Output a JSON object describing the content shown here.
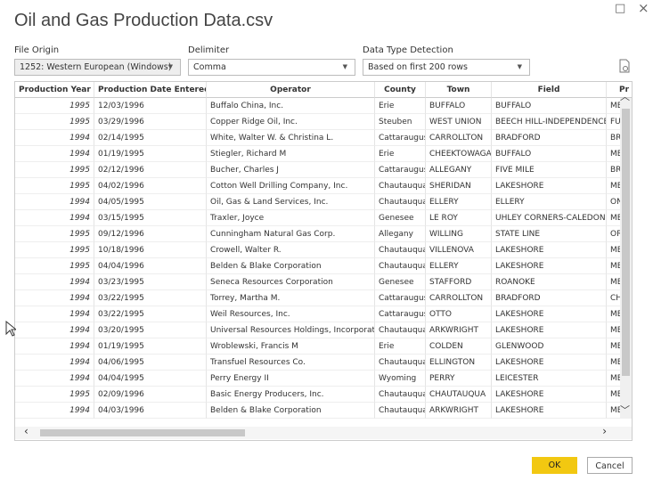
{
  "dialog": {
    "title": "Oil and Gas Production Data.csv",
    "file_origin": {
      "label": "File Origin",
      "value": "1252: Western European (Windows)"
    },
    "delimiter": {
      "label": "Delimiter",
      "value": "Comma"
    },
    "detection": {
      "label": "Data Type Detection",
      "value": "Based on first 200 rows"
    },
    "ok": "OK",
    "cancel": "Cancel"
  },
  "table": {
    "columns": [
      "Production Year",
      "Production Date Entered",
      "Operator",
      "County",
      "Town",
      "Field",
      "Pr"
    ],
    "rows": [
      [
        "1995",
        "12/03/1996",
        "Buffalo China, Inc.",
        "Erie",
        "BUFFALO",
        "BUFFALO",
        "ME"
      ],
      [
        "1995",
        "03/29/1996",
        "Copper Ridge Oil, Inc.",
        "Steuben",
        "WEST UNION",
        "BEECH HILL-INDEPENDENCE",
        "FU"
      ],
      [
        "1994",
        "02/14/1995",
        "White, Walter W. & Christina L.",
        "Cattaraugus",
        "CARROLLTON",
        "BRADFORD",
        "BR"
      ],
      [
        "1994",
        "01/19/1995",
        "Stiegler, Richard M",
        "Erie",
        "CHEEKTOWAGA",
        "BUFFALO",
        "ME"
      ],
      [
        "1995",
        "02/12/1996",
        "Bucher, Charles J",
        "Cattaraugus",
        "ALLEGANY",
        "FIVE MILE",
        "BR"
      ],
      [
        "1995",
        "04/02/1996",
        "Cotton Well Drilling Company, Inc.",
        "Chautauqua",
        "SHERIDAN",
        "LAKESHORE",
        "ME"
      ],
      [
        "1994",
        "04/05/1995",
        "Oil, Gas & Land Services, Inc.",
        "Chautauqua",
        "ELLERY",
        "ELLERY",
        "ON"
      ],
      [
        "1994",
        "03/15/1995",
        "Traxler, Joyce",
        "Genesee",
        "LE ROY",
        "UHLEY CORNERS-CALEDONIA",
        "ME"
      ],
      [
        "1995",
        "09/12/1996",
        "Cunningham Natural Gas Corp.",
        "Allegany",
        "WILLING",
        "STATE LINE",
        "OR"
      ],
      [
        "1995",
        "10/18/1996",
        "Crowell, Walter R.",
        "Chautauqua",
        "VILLENOVA",
        "LAKESHORE",
        "ME"
      ],
      [
        "1995",
        "04/04/1996",
        "Belden & Blake Corporation",
        "Chautauqua",
        "ELLERY",
        "LAKESHORE",
        "ME"
      ],
      [
        "1994",
        "03/23/1995",
        "Seneca Resources Corporation",
        "Genesee",
        "STAFFORD",
        "ROANOKE",
        "ME"
      ],
      [
        "1994",
        "03/22/1995",
        "Torrey, Martha M.",
        "Cattaraugus",
        "CARROLLTON",
        "BRADFORD",
        "CH"
      ],
      [
        "1994",
        "03/22/1995",
        "Weil Resources, Inc.",
        "Cattaraugus",
        "OTTO",
        "LAKESHORE",
        "ME"
      ],
      [
        "1994",
        "03/20/1995",
        "Universal Resources Holdings, Incorporated",
        "Chautauqua",
        "ARKWRIGHT",
        "LAKESHORE",
        "ME"
      ],
      [
        "1994",
        "01/19/1995",
        "Wroblewski, Francis M",
        "Erie",
        "COLDEN",
        "GLENWOOD",
        "ME"
      ],
      [
        "1994",
        "04/06/1995",
        "Transfuel Resources Co.",
        "Chautauqua",
        "ELLINGTON",
        "LAKESHORE",
        "ME"
      ],
      [
        "1994",
        "04/04/1995",
        "Perry Energy II",
        "Wyoming",
        "PERRY",
        "LEICESTER",
        "ME"
      ],
      [
        "1995",
        "02/09/1996",
        "Basic Energy Producers, Inc.",
        "Chautauqua",
        "CHAUTAUQUA",
        "LAKESHORE",
        "ME"
      ],
      [
        "1994",
        "04/03/1996",
        "Belden & Blake Corporation",
        "Chautauqua",
        "ARKWRIGHT",
        "LAKESHORE",
        "ME"
      ]
    ]
  }
}
